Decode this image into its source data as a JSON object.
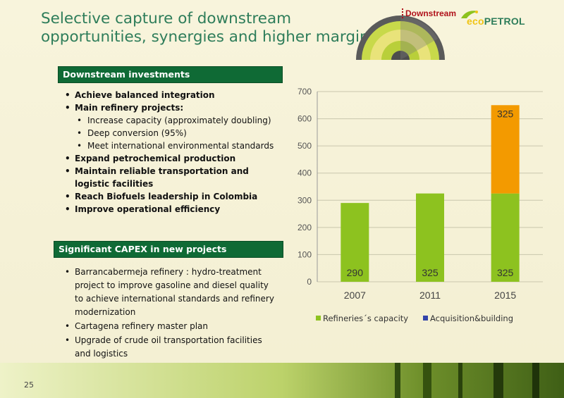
{
  "title_lines": [
    "Selective capture of downstream",
    "opportunities, synergies and higher margins"
  ],
  "section_label": "Downstream",
  "logo": {
    "eco": "eco",
    "petrol": "PETROL"
  },
  "box1": "Downstream investments",
  "list1": [
    {
      "text": "Achieve balanced integration",
      "level": 1
    },
    {
      "text": "Main refinery projects:",
      "level": 1
    },
    {
      "text": "Increase capacity (approximately doubling)",
      "level": 2
    },
    {
      "text": "Deep conversion (95%)",
      "level": 2
    },
    {
      "text": "Meet international environmental standards",
      "level": 2
    },
    {
      "text": "Expand petrochemical production",
      "level": 1
    },
    {
      "text": "Maintain reliable transportation and logistic facilities",
      "level": 1
    },
    {
      "text": "Reach Biofuels leadership in Colombia",
      "level": 1
    },
    {
      "text": "Improve operational efficiency",
      "level": 1
    }
  ],
  "box2": "Significant CAPEX in new projects",
  "list2": [
    "Barrancabermeja refinery : hydro-treatment project to improve gasoline and diesel quality to achieve international standards and refinery modernization",
    "Cartagena refinery master plan",
    "Upgrade of crude oil transportation facilities and logistics"
  ],
  "page_number": "25",
  "colors": {
    "green": "#8dc21f",
    "orange": "#f39a00",
    "dark_green": "#0f6a35",
    "blue": "#3344aa"
  },
  "chart_data": {
    "type": "bar",
    "stacked": true,
    "categories": [
      "2007",
      "2011",
      "2015"
    ],
    "series": [
      {
        "name": "Refineries´s capacity",
        "values": [
          290,
          325,
          325
        ],
        "color": "#8dc21f"
      },
      {
        "name": "Acquisition&building",
        "values": [
          0,
          0,
          325
        ],
        "color": "#f39a00"
      }
    ],
    "legend_colors": [
      "#8dc21f",
      "#3344aa"
    ],
    "ylim": [
      0,
      700
    ],
    "yticks": [
      0,
      100,
      200,
      300,
      400,
      500,
      600,
      700
    ],
    "legend_position": "bottom",
    "grid": true
  }
}
